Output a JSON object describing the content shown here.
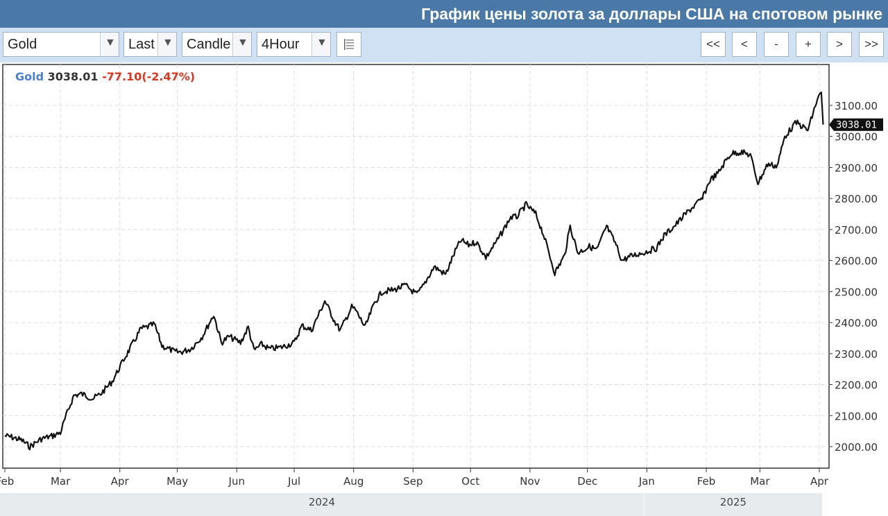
{
  "header": {
    "title": "График цены золота за доллары США на спотовом рынке"
  },
  "toolbar": {
    "symbol": "Gold",
    "price_type": "Last",
    "chart_type": "Candle",
    "interval": "4Hour",
    "nav": [
      "<<",
      "<",
      "-",
      "+",
      ">",
      ">>"
    ]
  },
  "legend": {
    "symbol": "Gold",
    "price": "3038.01",
    "change": "-77.10(-2.47%)"
  },
  "colors": {
    "header_bg": "#4a79a8",
    "toolbar_bg": "#cfe1f3",
    "line": "#111111",
    "change_negative": "#d9361f",
    "symbol_label": "#4a7fd6"
  },
  "chart_data": {
    "type": "line",
    "title": "",
    "xlabel": "",
    "ylabel": "",
    "ylim": [
      1975,
      3175
    ],
    "yticks": [
      "2000.00",
      "2100.00",
      "2200.00",
      "2300.00",
      "2400.00",
      "2500.00",
      "2600.00",
      "2700.00",
      "2800.00",
      "2900.00",
      "3000.00",
      "3100.00"
    ],
    "xticks": [
      {
        "label": "Feb",
        "date": "2024-02-01"
      },
      {
        "label": "Mar",
        "date": "2024-03-01"
      },
      {
        "label": "Apr",
        "date": "2024-04-01"
      },
      {
        "label": "May",
        "date": "2024-05-01"
      },
      {
        "label": "Jun",
        "date": "2024-06-01"
      },
      {
        "label": "Jul",
        "date": "2024-07-01"
      },
      {
        "label": "Aug",
        "date": "2024-08-01"
      },
      {
        "label": "Sep",
        "date": "2024-09-01"
      },
      {
        "label": "Oct",
        "date": "2024-10-01"
      },
      {
        "label": "Nov",
        "date": "2024-11-01"
      },
      {
        "label": "Dec",
        "date": "2024-12-01"
      },
      {
        "label": "Jan",
        "date": "2025-01-01"
      },
      {
        "label": "Feb",
        "date": "2025-02-01"
      },
      {
        "label": "Mar",
        "date": "2025-03-01"
      },
      {
        "label": "Apr",
        "date": "2025-04-01"
      }
    ],
    "years": [
      "2024",
      "2025"
    ],
    "grid": true,
    "last_price_label": "3038.01",
    "series": [
      {
        "x": [
          "2024-02-01",
          "2024-02-05",
          "2024-02-10",
          "2024-02-14",
          "2024-02-20",
          "2024-02-26",
          "2024-03-01",
          "2024-03-04",
          "2024-03-08",
          "2024-03-12",
          "2024-03-18",
          "2024-03-22",
          "2024-03-28",
          "2024-04-03",
          "2024-04-08",
          "2024-04-12",
          "2024-04-15",
          "2024-04-19",
          "2024-04-23",
          "2024-04-30",
          "2024-05-03",
          "2024-05-08",
          "2024-05-14",
          "2024-05-20",
          "2024-05-24",
          "2024-05-28",
          "2024-06-03",
          "2024-06-07",
          "2024-06-10",
          "2024-06-14",
          "2024-06-18",
          "2024-06-24",
          "2024-07-01",
          "2024-07-05",
          "2024-07-10",
          "2024-07-17",
          "2024-07-22",
          "2024-07-25",
          "2024-07-31",
          "2024-08-02",
          "2024-08-07",
          "2024-08-12",
          "2024-08-16",
          "2024-08-22",
          "2024-08-28",
          "2024-09-03",
          "2024-09-06",
          "2024-09-12",
          "2024-09-18",
          "2024-09-23",
          "2024-09-26",
          "2024-09-30",
          "2024-10-04",
          "2024-10-09",
          "2024-10-15",
          "2024-10-22",
          "2024-10-25",
          "2024-10-30",
          "2024-11-04",
          "2024-11-08",
          "2024-11-14",
          "2024-11-19",
          "2024-11-22",
          "2024-11-26",
          "2024-12-02",
          "2024-12-06",
          "2024-12-11",
          "2024-12-16",
          "2024-12-19",
          "2024-12-24",
          "2024-12-30",
          "2025-01-06",
          "2025-01-10",
          "2025-01-16",
          "2025-01-22",
          "2025-01-30",
          "2025-02-03",
          "2025-02-07",
          "2025-02-11",
          "2025-02-14",
          "2025-02-19",
          "2025-02-24",
          "2025-02-28",
          "2025-03-05",
          "2025-03-10",
          "2025-03-14",
          "2025-03-20",
          "2025-03-26",
          "2025-03-31",
          "2025-04-02",
          "2025-04-03"
        ],
        "values": [
          2035,
          2030,
          2020,
          2000,
          2025,
          2035,
          2045,
          2100,
          2165,
          2170,
          2155,
          2170,
          2210,
          2280,
          2335,
          2380,
          2385,
          2395,
          2325,
          2305,
          2305,
          2315,
          2355,
          2425,
          2335,
          2355,
          2335,
          2385,
          2310,
          2330,
          2315,
          2320,
          2335,
          2390,
          2375,
          2470,
          2405,
          2375,
          2450,
          2440,
          2385,
          2465,
          2500,
          2505,
          2520,
          2490,
          2515,
          2580,
          2555,
          2630,
          2665,
          2650,
          2660,
          2610,
          2665,
          2740,
          2740,
          2780,
          2750,
          2685,
          2560,
          2615,
          2710,
          2625,
          2645,
          2635,
          2710,
          2650,
          2600,
          2615,
          2625,
          2640,
          2680,
          2715,
          2755,
          2800,
          2860,
          2880,
          2920,
          2945,
          2950,
          2940,
          2850,
          2910,
          2905,
          3000,
          3045,
          3020,
          3120,
          3140,
          3038
        ]
      }
    ]
  }
}
